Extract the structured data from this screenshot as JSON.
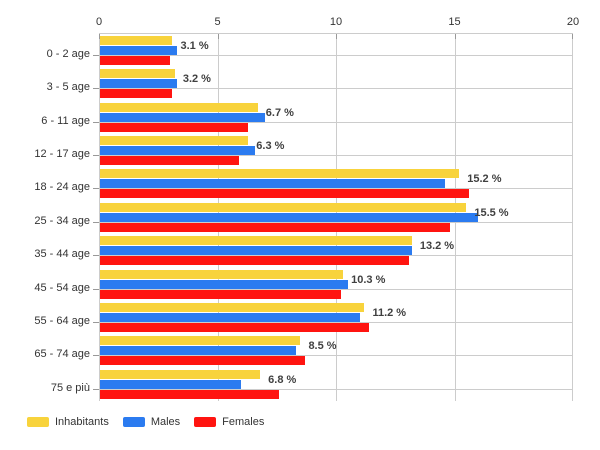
{
  "chart_data": {
    "type": "bar",
    "orientation": "horizontal",
    "title": "",
    "xlabel": "",
    "ylabel": "",
    "xlim": [
      0,
      20
    ],
    "x_ticks": [
      0,
      5,
      10,
      15,
      20
    ],
    "x_tick_labels": [
      "0",
      "5",
      "10",
      "15",
      "20"
    ],
    "grid": true,
    "legend_position": "bottom-left",
    "categories": [
      "0 - 2 age",
      "3 - 5 age",
      "6 - 11 age",
      "12 - 17 age",
      "18 - 24 age",
      "25 - 34 age",
      "35 - 44 age",
      "45 - 54 age",
      "55 - 64 age",
      "65 - 74 age",
      "75 e più"
    ],
    "series": [
      {
        "name": "Inhabitants",
        "color": "#F8D33C",
        "values": [
          3.1,
          3.2,
          6.7,
          6.3,
          15.2,
          15.5,
          13.2,
          10.3,
          11.2,
          8.5,
          6.8
        ]
      },
      {
        "name": "Males",
        "color": "#2B7BF0",
        "values": [
          3.3,
          3.3,
          7.0,
          6.6,
          14.6,
          16.0,
          13.2,
          10.5,
          11.0,
          8.3,
          6.0
        ]
      },
      {
        "name": "Females",
        "color": "#FF1410",
        "values": [
          3.0,
          3.1,
          6.3,
          5.9,
          15.6,
          14.8,
          13.1,
          10.2,
          11.4,
          8.7,
          7.6
        ]
      }
    ],
    "bar_labels": [
      "3.1 %",
      "3.2 %",
      "6.7 %",
      "6.3 %",
      "15.2 %",
      "15.5 %",
      "13.2 %",
      "10.3 %",
      "11.2 %",
      "8.5 %",
      "6.8 %"
    ],
    "bar_labels_for_series": "Inhabitants"
  },
  "colors": {
    "grid": "#cccccc",
    "axis_line": "#cccccc",
    "tick": "#999999",
    "tick_label": "#333333",
    "category_label": "#333333",
    "value_label": "#404040",
    "legend_label": "#333333",
    "background": "#ffffff"
  }
}
